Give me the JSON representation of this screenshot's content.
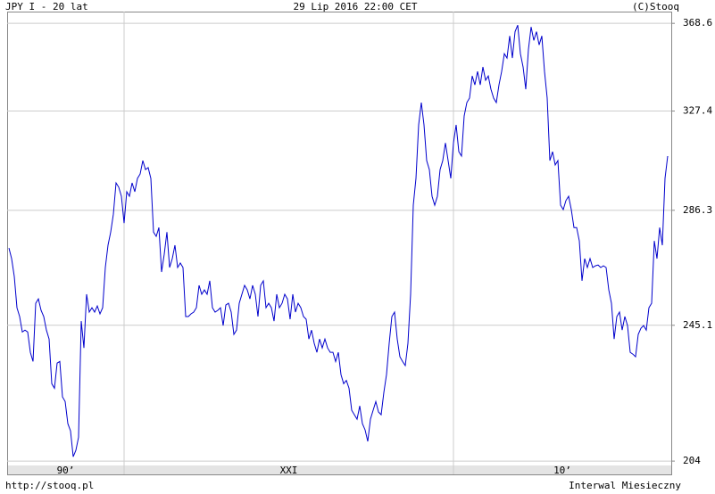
{
  "header": {
    "left": "JPY_I - 20 lat",
    "center": "29 Lip 2016 22:00 CET",
    "right": "(C)Stooq"
  },
  "footer": {
    "left": "http://stooq.pl",
    "right": "Interwal Miesieczny"
  },
  "chart_data": {
    "type": "line",
    "log_scale": true,
    "grid": true,
    "color": "#0000cc",
    "ylim": [
      202.8,
      374.5
    ],
    "yticks": [
      368.6,
      327.4,
      286.3,
      245.1,
      204.0
    ],
    "xticks": [
      43,
      166
    ],
    "x_period_labels": [
      "90’",
      "XXI",
      "10’"
    ],
    "values": [
      272.1,
      268.2,
      261.8,
      251.0,
      248.0,
      242.9,
      243.5,
      242.9,
      236.3,
      233.4,
      252.5,
      254.0,
      250.1,
      248.0,
      243.5,
      240.6,
      226.5,
      225.1,
      232.9,
      233.4,
      222.5,
      221.1,
      214.6,
      212.5,
      205.2,
      207.0,
      210.7,
      246.5,
      237.7,
      255.6,
      249.5,
      251.0,
      249.5,
      251.6,
      248.9,
      251.0,
      265.0,
      273.1,
      278.0,
      284.8,
      297.1,
      295.4,
      291.8,
      281.4,
      293.6,
      291.8,
      297.1,
      293.6,
      298.9,
      300.7,
      306.2,
      302.5,
      303.3,
      298.9,
      278.0,
      276.4,
      279.7,
      263.4,
      269.8,
      278.0,
      265.0,
      268.2,
      273.1,
      265.0,
      266.6,
      265.0,
      248.0,
      248.0,
      248.9,
      249.5,
      251.0,
      258.7,
      255.6,
      257.1,
      255.6,
      260.3,
      251.0,
      249.5,
      250.1,
      251.0,
      245.0,
      251.9,
      252.5,
      249.5,
      242.1,
      243.5,
      252.5,
      255.6,
      258.7,
      257.1,
      254.0,
      258.7,
      255.6,
      248.0,
      258.7,
      260.3,
      251.0,
      252.5,
      251.0,
      246.5,
      255.6,
      251.0,
      252.5,
      255.6,
      254.0,
      247.1,
      255.6,
      249.5,
      252.5,
      251.0,
      248.0,
      247.1,
      240.6,
      243.5,
      239.2,
      236.3,
      240.6,
      237.7,
      240.6,
      237.7,
      236.3,
      236.3,
      233.4,
      236.3,
      229.3,
      226.5,
      227.5,
      225.1,
      218.5,
      217.2,
      215.9,
      219.8,
      214.6,
      212.8,
      209.5,
      215.9,
      218.5,
      221.1,
      218.0,
      217.2,
      223.8,
      229.3,
      239.2,
      248.0,
      249.5,
      240.6,
      234.9,
      233.4,
      232.1,
      239.2,
      255.6,
      288.3,
      298.9,
      321.3,
      331.2,
      321.3,
      306.2,
      302.5,
      291.8,
      288.3,
      291.8,
      302.5,
      306.2,
      313.6,
      306.2,
      298.9,
      313.6,
      321.3,
      309.9,
      308.1,
      325.2,
      331.2,
      333.2,
      343.3,
      339.2,
      345.4,
      339.2,
      347.5,
      341.3,
      343.3,
      337.2,
      333.2,
      331.2,
      339.2,
      345.4,
      353.8,
      351.7,
      362.4,
      351.7,
      364.5,
      367.7,
      353.8,
      347.5,
      337.2,
      355.9,
      366.8,
      360.2,
      364.5,
      358.0,
      362.4,
      345.4,
      333.2,
      306.2,
      309.9,
      304.4,
      306.2,
      288.3,
      286.6,
      290.1,
      291.8,
      286.6,
      279.7,
      279.7,
      274.7,
      260.3,
      268.2,
      265.0,
      268.2,
      265.0,
      265.6,
      265.9,
      265.0,
      265.6,
      265.0,
      257.1,
      252.5,
      240.6,
      248.0,
      249.5,
      243.5,
      248.0,
      245.0,
      236.3,
      235.7,
      234.9,
      242.1,
      244.1,
      245.0,
      243.5,
      251.0,
      252.5,
      274.7,
      268.2,
      279.7,
      273.1,
      298.9,
      308.1
    ]
  }
}
